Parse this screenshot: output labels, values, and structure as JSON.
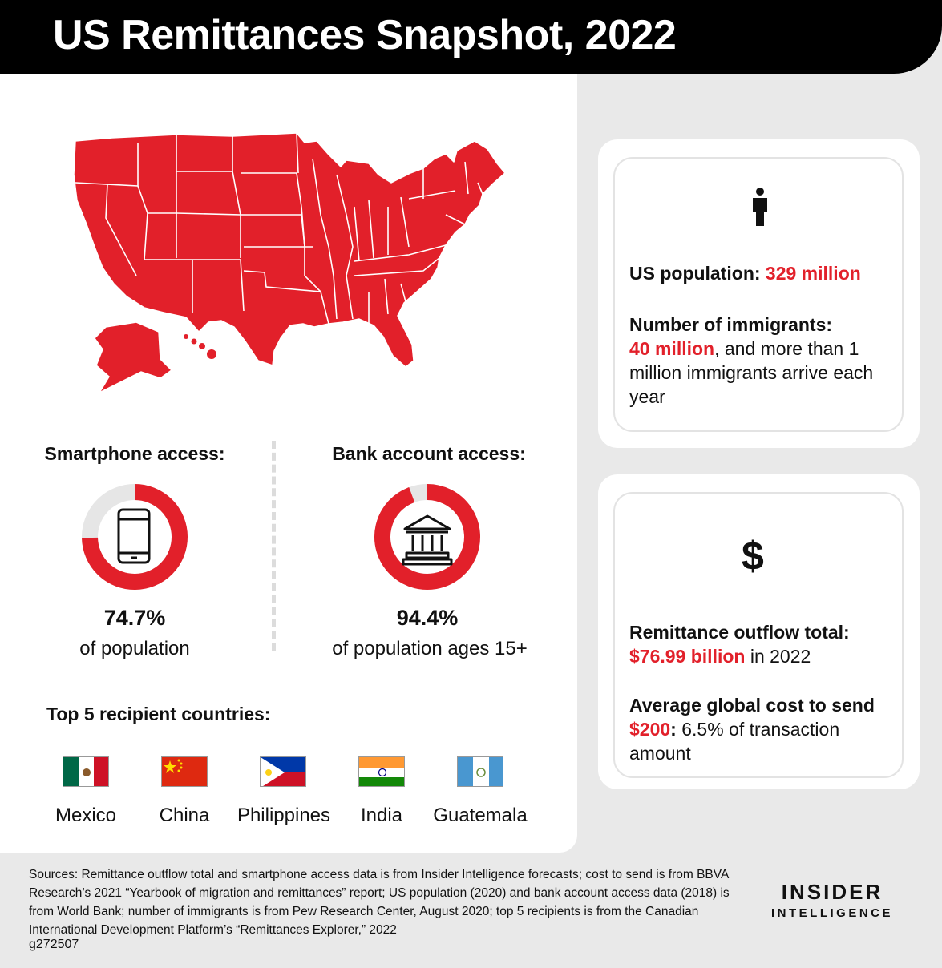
{
  "title": "US Remittances Snapshot, 2022",
  "colors": {
    "accent": "#e2202a",
    "track": "#e6e6e6",
    "title_bg": "#000000"
  },
  "chart_data": [
    {
      "type": "pie",
      "title": "Smartphone access:",
      "value_label": "74.7%",
      "subtitle": "of population",
      "values": [
        74.7,
        25.3
      ],
      "icon": "smartphone-icon"
    },
    {
      "type": "pie",
      "title": "Bank account access:",
      "value_label": "94.4%",
      "subtitle": "of population ages 15+",
      "values": [
        94.4,
        5.6
      ],
      "icon": "bank-icon"
    }
  ],
  "countries": {
    "heading": "Top 5 recipient countries:",
    "items": [
      {
        "name": "Mexico",
        "flag": "mexico-flag-icon"
      },
      {
        "name": "China",
        "flag": "china-flag-icon"
      },
      {
        "name": "Philippines",
        "flag": "philippines-flag-icon"
      },
      {
        "name": "India",
        "flag": "india-flag-icon"
      },
      {
        "name": "Guatemala",
        "flag": "guatemala-flag-icon"
      }
    ]
  },
  "population_card": {
    "icon": "person-icon",
    "pop_label": "US population: ",
    "pop_value": "329 million",
    "imm_label": "Number of immigrants:",
    "imm_value": "40 million",
    "imm_rest": ", and more than 1 million immigrants arrive each year"
  },
  "remittance_card": {
    "icon": "dollar-icon",
    "dollar_glyph": "$",
    "out_label": "Remittance outflow total:",
    "out_value": "$76.99 billion",
    "out_rest": " in 2022",
    "cost_label": "Average global cost to send ",
    "cost_value": "$200",
    "cost_colon": ":",
    "cost_rest": " 6.5% of transaction amount"
  },
  "footer": {
    "sources": "Sources: Remittance outflow total and smartphone access data is from Insider Intelligence forecasts; cost to send is from BBVA Research’s 2021 “Yearbook of migration and remittances” report; US population (2020) and bank account access data (2018) is from World Bank; number of immigrants is from Pew Research Center, August 2020; top 5 recipients is from the Canadian International Development Platform’s “Remittances Explorer,” 2022",
    "code": "g272507",
    "logo_line1": "INSIDER",
    "logo_line2": "INTELLIGENCE"
  }
}
